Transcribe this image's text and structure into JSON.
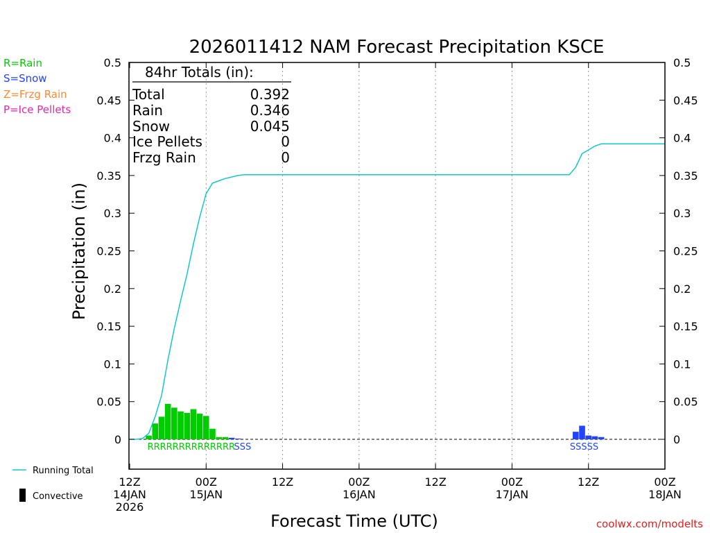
{
  "chart_data": {
    "type": "bar",
    "title": "2026011412 NAM Forecast Precipitation KSCE",
    "xlabel": "Forecast Time (UTC)",
    "ylabel": "Precipitation (in)",
    "ylim": [
      -0.04,
      0.5
    ],
    "xlim_hours": [
      0,
      84
    ],
    "y_ticks": [
      {
        "v": 0,
        "label": "0"
      },
      {
        "v": 0.05,
        "label": "0.05"
      },
      {
        "v": 0.1,
        "label": "0.1"
      },
      {
        "v": 0.15,
        "label": "0.15"
      },
      {
        "v": 0.2,
        "label": "0.2"
      },
      {
        "v": 0.25,
        "label": "0.25"
      },
      {
        "v": 0.3,
        "label": "0.3"
      },
      {
        "v": 0.35,
        "label": "0.35"
      },
      {
        "v": 0.4,
        "label": "0.4"
      },
      {
        "v": 0.45,
        "label": "0.45"
      },
      {
        "v": 0.5,
        "label": "0.5"
      }
    ],
    "x_ticks": [
      {
        "h": 0,
        "line1": "12Z",
        "line2": "14JAN",
        "line3": "2026"
      },
      {
        "h": 12,
        "line1": "00Z",
        "line2": "15JAN",
        "line3": ""
      },
      {
        "h": 24,
        "line1": "12Z",
        "line2": "",
        "line3": ""
      },
      {
        "h": 36,
        "line1": "00Z",
        "line2": "16JAN",
        "line3": ""
      },
      {
        "h": 48,
        "line1": "12Z",
        "line2": "",
        "line3": ""
      },
      {
        "h": 60,
        "line1": "00Z",
        "line2": "17JAN",
        "line3": ""
      },
      {
        "h": 72,
        "line1": "12Z",
        "line2": "",
        "line3": ""
      },
      {
        "h": 84,
        "line1": "00Z",
        "line2": "18JAN",
        "line3": ""
      }
    ],
    "bars": [
      {
        "h": 3,
        "v": 0.005,
        "type": "R"
      },
      {
        "h": 4,
        "v": 0.021,
        "type": "R"
      },
      {
        "h": 5,
        "v": 0.03,
        "type": "R"
      },
      {
        "h": 6,
        "v": 0.047,
        "type": "R"
      },
      {
        "h": 7,
        "v": 0.042,
        "type": "R"
      },
      {
        "h": 8,
        "v": 0.037,
        "type": "R"
      },
      {
        "h": 9,
        "v": 0.035,
        "type": "R"
      },
      {
        "h": 10,
        "v": 0.04,
        "type": "R"
      },
      {
        "h": 11,
        "v": 0.034,
        "type": "R"
      },
      {
        "h": 12,
        "v": 0.031,
        "type": "R"
      },
      {
        "h": 13,
        "v": 0.014,
        "type": "R"
      },
      {
        "h": 14,
        "v": 0.003,
        "type": "R"
      },
      {
        "h": 15,
        "v": 0.003,
        "type": "R"
      },
      {
        "h": 16,
        "v": 0.002,
        "type": "S"
      },
      {
        "h": 17,
        "v": 0.001,
        "type": "S"
      },
      {
        "h": 70,
        "v": 0.01,
        "type": "S"
      },
      {
        "h": 71,
        "v": 0.018,
        "type": "S"
      },
      {
        "h": 72,
        "v": 0.005,
        "type": "S"
      },
      {
        "h": 73,
        "v": 0.004,
        "type": "S"
      },
      {
        "h": 74,
        "v": 0.003,
        "type": "S"
      }
    ],
    "running_total": {
      "name": "Running Total",
      "points": [
        [
          0,
          0
        ],
        [
          1,
          0
        ],
        [
          2,
          0.001
        ],
        [
          3,
          0.008
        ],
        [
          4,
          0.03
        ],
        [
          5,
          0.058
        ],
        [
          6,
          0.105
        ],
        [
          7,
          0.147
        ],
        [
          8,
          0.184
        ],
        [
          9,
          0.219
        ],
        [
          10,
          0.259
        ],
        [
          11,
          0.295
        ],
        [
          12,
          0.326
        ],
        [
          13,
          0.34
        ],
        [
          14,
          0.343
        ],
        [
          15,
          0.346
        ],
        [
          16,
          0.348
        ],
        [
          17,
          0.35
        ],
        [
          18,
          0.351
        ],
        [
          19,
          0.351
        ],
        [
          69,
          0.351
        ],
        [
          70,
          0.361
        ],
        [
          71,
          0.379
        ],
        [
          72,
          0.384
        ],
        [
          73,
          0.389
        ],
        [
          74,
          0.392
        ],
        [
          84,
          0.392
        ]
      ]
    },
    "ptype_labels": [
      {
        "text": "RRRRRRRRRRRRRR",
        "type": "R",
        "h": 3
      },
      {
        "text": "SSS",
        "type": "S",
        "h": 16.6
      },
      {
        "text": "SSSSS",
        "type": "S",
        "h": 69.3
      }
    ]
  },
  "colors": {
    "rain": "#00cc00",
    "snow": "#2244ff",
    "frzg": "#ff8833",
    "ice": "#ee22aa",
    "running_total": "#11c8c8",
    "convective": "#000000",
    "grid": "#999999"
  },
  "ptype_legend": [
    {
      "text": "R=Rain",
      "key": "rain"
    },
    {
      "text": "S=Snow",
      "key": "snow"
    },
    {
      "text": "Z=Frzg Rain",
      "key": "frzg"
    },
    {
      "text": "P=Ice Pellets",
      "key": "ice"
    }
  ],
  "totals": {
    "heading": "84hr Totals (in):",
    "rows": [
      {
        "label": "Total",
        "value": "0.392"
      },
      {
        "label": "Rain",
        "value": "0.346"
      },
      {
        "label": "Snow",
        "value": "0.045"
      },
      {
        "label": "Ice Pellets",
        "value": "0"
      },
      {
        "label": "Frzg Rain",
        "value": "0"
      }
    ]
  },
  "series_legend": {
    "running_total": "Running Total",
    "convective": "Convective"
  },
  "credit": "coolwx.com/modelts"
}
